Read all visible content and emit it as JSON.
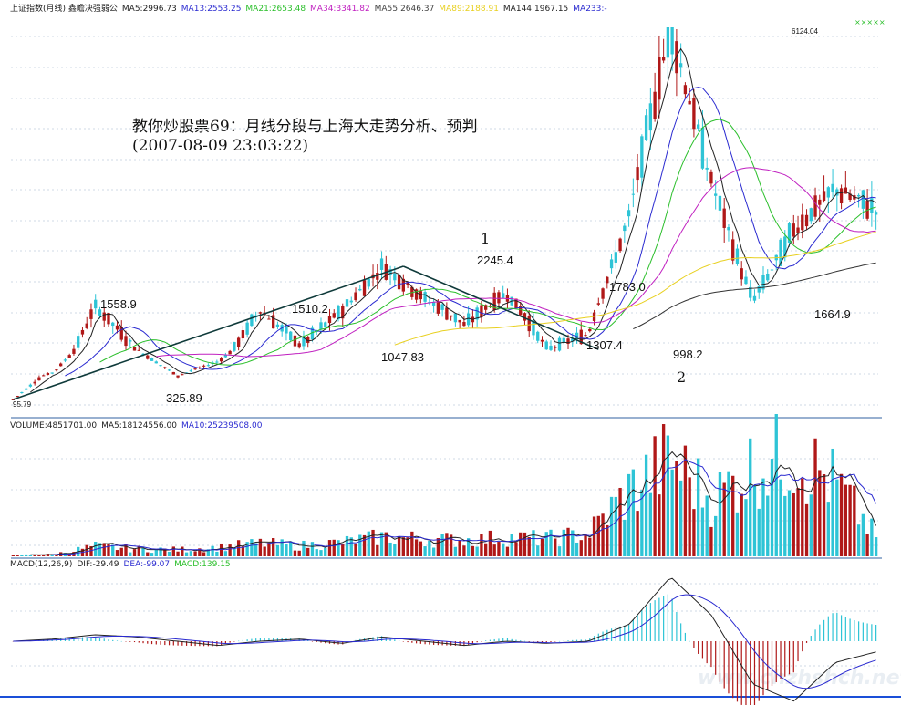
{
  "header": {
    "main": [
      {
        "text": "上证指数(月线) 鑫瞻决强弱公",
        "color": "#222222"
      },
      {
        "text": "MA5:2996.73",
        "color": "#222222"
      },
      {
        "text": "MA13:2553.25",
        "color": "#2a2ad0"
      },
      {
        "text": "MA21:2653.48",
        "color": "#2bbf2b"
      },
      {
        "text": "MA34:3341.82",
        "color": "#c020c0"
      },
      {
        "text": "MA55:2646.37",
        "color": "#444444"
      },
      {
        "text": "MA89:2188.91",
        "color": "#e8d020"
      },
      {
        "text": "MA144:1967.15",
        "color": "#222222"
      },
      {
        "text": "MA233:-",
        "color": "#2a2ad0"
      }
    ],
    "volume": [
      {
        "text": "VOLUME:4851701.00",
        "color": "#222222"
      },
      {
        "text": "MA5:18124556.00",
        "color": "#222222"
      },
      {
        "text": "MA10:25239508.00",
        "color": "#2a2ad0"
      }
    ],
    "macd": [
      {
        "text": "MACD(12,26,9)",
        "color": "#222222"
      },
      {
        "text": "DIF:-29.49",
        "color": "#222222"
      },
      {
        "text": "DEA:-99.07",
        "color": "#2a2ad0"
      },
      {
        "text": "MACD:139.15",
        "color": "#2bbf2b"
      }
    ],
    "corner_marker": "×××××"
  },
  "annotation": {
    "title": "教你炒股票69：月线分段与上海大走势分析、预判",
    "timestamp": "(2007-08-09 23:03:22)",
    "segment_1": "1",
    "segment_2": "2"
  },
  "watermark": "www.chzhshch.net",
  "colors": {
    "up": "#2ec4d6",
    "down": "#b01818",
    "grid": "#cfd8e4",
    "divider": "#3060a0",
    "trendline": "#0f3a3a",
    "ma5": "#222222",
    "ma13": "#2a2ad0",
    "ma21": "#2bbf2b",
    "ma34": "#c020c0",
    "ma89": "#e8d020",
    "ma144": "#333333",
    "bottom_line": "#1a4fd8"
  },
  "chart_data": {
    "type": "candlestick",
    "period": "monthly",
    "price_labels": [
      {
        "label": "95.79",
        "value": 95.79
      },
      {
        "label": "1558.9",
        "value": 1558.9
      },
      {
        "label": "325.89",
        "value": 325.89
      },
      {
        "label": "1510.2",
        "value": 1510.2
      },
      {
        "label": "1047.83",
        "value": 1047.83
      },
      {
        "label": "2245.4",
        "value": 2245.4
      },
      {
        "label": "1783.0",
        "value": 1783.0
      },
      {
        "label": "1307.4",
        "value": 1307.4
      },
      {
        "label": "998.2",
        "value": 998.2
      },
      {
        "label": "6124.04",
        "value": 6124.04
      },
      {
        "label": "1664.9",
        "value": 1664.9
      }
    ],
    "swing_path": [
      95.79,
      2245.4,
      998.2
    ],
    "price_path": [
      95.79,
      420,
      1558.9,
      1000,
      325.89,
      700,
      1510.2,
      1047.83,
      1500,
      2245.4,
      1700,
      1307.4,
      1783.0,
      998.2,
      1200,
      3000,
      6124.04,
      3500,
      1664.9,
      2800,
      3400,
      3100
    ],
    "volume_path": [
      0.3,
      0.5,
      2.5,
      1.8,
      1.6,
      2.2,
      3.2,
      2.6,
      3.4,
      4.8,
      4.2,
      4.0,
      4.6,
      4.3,
      5.6,
      16.0,
      24.0,
      14.0,
      22.0,
      25.0,
      18.0,
      4.85
    ],
    "macd_path": [
      0,
      1,
      3,
      2,
      0,
      -2,
      0,
      1,
      -1,
      2,
      0,
      -2,
      0,
      -1,
      0,
      8,
      30,
      12,
      -20,
      -28,
      -10,
      -5
    ],
    "indicators": {
      "MA5": 2996.73,
      "MA13": 2553.25,
      "MA21": 2653.48,
      "MA34": 3341.82,
      "MA55": 2646.37,
      "MA89": 2188.91,
      "MA144": 1967.15,
      "VOLUME": 4851701.0,
      "VOL_MA5": 18124556.0,
      "VOL_MA10": 25239508.0,
      "DIF": -29.49,
      "DEA": -99.07,
      "MACD": 139.15
    }
  }
}
